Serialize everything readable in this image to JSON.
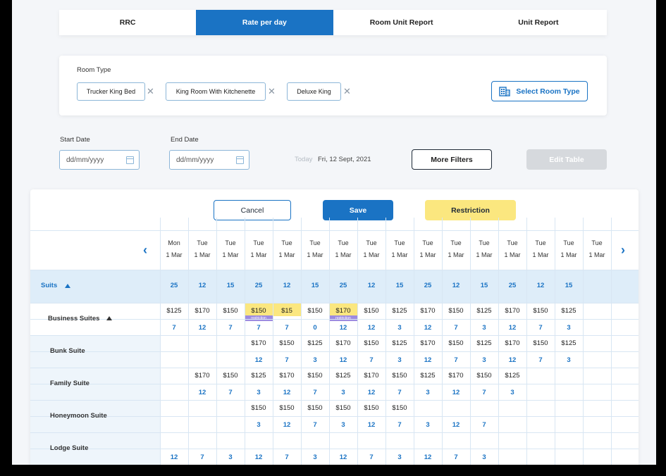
{
  "tabs": [
    "RRC",
    "Rate per day",
    "Room Unit Report",
    "Unit Report"
  ],
  "active_tab": 1,
  "room_type": {
    "label": "Room Type",
    "chips": [
      "Trucker King Bed",
      "King Room With Kitchenette",
      "Deluxe King"
    ],
    "remove_glyph": "✕",
    "select_label": "Select Room Type",
    "select_icon": "building-icon"
  },
  "filters": {
    "start_label": "Start Date",
    "start_placeholder": "dd/mm/yyyy",
    "end_label": "End Date",
    "end_placeholder": "dd/mm/yyyy",
    "today_label": "Today",
    "today_value": "Fri, 12 Sept, 2021",
    "more_filters": "More Filters",
    "edit_table": "Edit Table"
  },
  "actions": {
    "cancel": "Cancel",
    "save": "Save",
    "restriction": "Restriction"
  },
  "days": [
    [
      "Mon",
      "1 Mar"
    ],
    [
      "Tue",
      "1 Mar"
    ],
    [
      "Tue",
      "1 Mar"
    ],
    [
      "Tue",
      "1 Mar"
    ],
    [
      "Tue",
      "1 Mar"
    ],
    [
      "Tue",
      "1 Mar"
    ],
    [
      "Tue",
      "1 Mar"
    ],
    [
      "Tue",
      "1 Mar"
    ],
    [
      "Tue",
      "1 Mar"
    ],
    [
      "Tue",
      "1 Mar"
    ],
    [
      "Tue",
      "1 Mar"
    ],
    [
      "Tue",
      "1 Mar"
    ],
    [
      "Tue",
      "1 Mar"
    ],
    [
      "Tue",
      "1 Mar"
    ],
    [
      "Tue",
      "1 Mar"
    ],
    [
      "Tue",
      "1 Mar"
    ]
  ],
  "nav": {
    "prev": "‹",
    "next": "›"
  },
  "group": {
    "label": "Suits",
    "values": [
      "25",
      "12",
      "15",
      "25",
      "12",
      "15",
      "25",
      "12",
      "15",
      "25",
      "12",
      "15",
      "25",
      "12",
      "15",
      ""
    ]
  },
  "restriction_tag": "restriction",
  "rows": [
    {
      "label": "Business Suites",
      "has_caret": true,
      "prices": [
        "$125",
        "$170",
        "$150",
        "$150",
        "$15",
        "$150",
        "$170",
        "$150",
        "$125",
        "$170",
        "$150",
        "$125",
        "$170",
        "$150",
        "$125",
        ""
      ],
      "counts": [
        "7",
        "12",
        "7",
        "7",
        "7",
        "0",
        "12",
        "12",
        "3",
        "12",
        "7",
        "3",
        "12",
        "7",
        "3",
        ""
      ],
      "highlight": [
        3,
        4,
        6
      ],
      "restricted": [
        3,
        6
      ]
    },
    {
      "label": "Bunk Suite",
      "prices": [
        "",
        "",
        "",
        "$170",
        "$150",
        "$125",
        "$170",
        "$150",
        "$125",
        "$170",
        "$150",
        "$125",
        "$170",
        "$150",
        "$125",
        ""
      ],
      "counts": [
        "",
        "",
        "",
        "12",
        "7",
        "3",
        "12",
        "7",
        "3",
        "12",
        "7",
        "3",
        "12",
        "7",
        "3",
        ""
      ]
    },
    {
      "label": "Family Suite",
      "prices": [
        "",
        "$170",
        "$150",
        "$125",
        "$170",
        "$150",
        "$125",
        "$170",
        "$150",
        "$125",
        "$170",
        "$150",
        "$125",
        "",
        "",
        ""
      ],
      "counts": [
        "",
        "12",
        "7",
        "3",
        "12",
        "7",
        "3",
        "12",
        "7",
        "3",
        "12",
        "7",
        "3",
        "",
        "",
        ""
      ]
    },
    {
      "label": "Honeymoon Suite",
      "prices": [
        "",
        "",
        "",
        "$150",
        "$150",
        "$150",
        "$150",
        "$150",
        "$150",
        "",
        "",
        "",
        "",
        "",
        "",
        ""
      ],
      "counts": [
        "",
        "",
        "",
        "3",
        "12",
        "7",
        "3",
        "12",
        "7",
        "3",
        "12",
        "7",
        "",
        "",
        "",
        ""
      ]
    },
    {
      "label": "Lodge Suite",
      "prices": [
        "",
        "",
        "",
        "",
        "",
        "",
        "",
        "",
        "",
        "",
        "",
        "",
        "",
        "",
        "",
        ""
      ],
      "counts": [
        "12",
        "7",
        "3",
        "12",
        "7",
        "3",
        "12",
        "7",
        "3",
        "12",
        "7",
        "3",
        "",
        "",
        "",
        ""
      ]
    }
  ]
}
